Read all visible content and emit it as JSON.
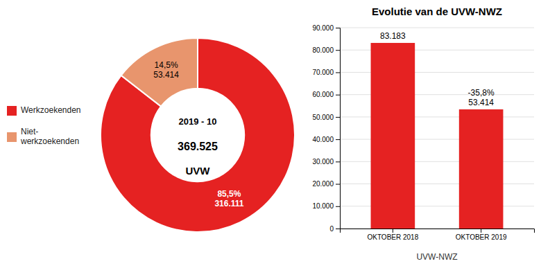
{
  "chart_data": [
    {
      "type": "donut",
      "categories": [
        "Werkzoekenden",
        "Niet-\nwerkzoekenden"
      ],
      "values": [
        316111,
        53414
      ],
      "value_labels": [
        "85,5%\n316.111",
        "14,5%\n53.414"
      ],
      "colors": [
        "#E52222",
        "#E8956D"
      ],
      "data_labels": true,
      "annotations": [
        "2019 - 10",
        "369.525",
        "UVW"
      ],
      "legend": "left"
    },
    {
      "type": "bar",
      "title": "Evolutie van de UVW-NWZ",
      "xlabel": "UVW-NWZ",
      "categories": [
        "OKTOBER 2018",
        "OKTOBER 2019"
      ],
      "values": [
        83183,
        53414
      ],
      "value_labels": [
        "83.183",
        "-35,8%\n53.414"
      ],
      "data_labels": true,
      "color": "#E52222",
      "ylim": [
        0,
        90000
      ],
      "yticks": [
        0,
        {
          "value": 10000,
          "label": "10.000"
        },
        {
          "value": 20000,
          "label": "20.000"
        },
        {
          "value": 30000,
          "label": "30.000"
        },
        {
          "value": 40000,
          "label": "40.000"
        },
        {
          "value": 50000,
          "label": "50.000"
        },
        {
          "value": 60000,
          "label": "60.000"
        },
        {
          "value": 70000,
          "label": "70.000"
        },
        {
          "value": 80000,
          "label": "80.000"
        },
        {
          "value": 90000,
          "label": "90.000"
        }
      ],
      "grid": true
    }
  ]
}
